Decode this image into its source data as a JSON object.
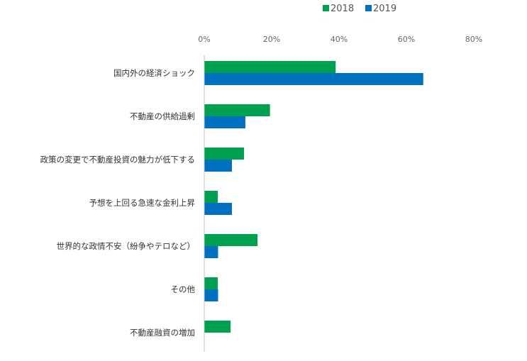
{
  "chart_data": {
    "type": "bar",
    "orientation": "horizontal",
    "categories": [
      "国内外の経済ショック",
      "不動産の供給過剰",
      "政策の変更で不動産投資の魅力が低下する",
      "予想を上回る急速な金利上昇",
      "世界的な政情不安（紛争やテロなど）",
      "その他",
      "不動産融資の増加"
    ],
    "series": [
      {
        "name": "2018",
        "color": "#00a051",
        "values": [
          39,
          19.5,
          11.8,
          4,
          15.8,
          4,
          7.8
        ]
      },
      {
        "name": "2019",
        "color": "#0071c0",
        "values": [
          65,
          12.2,
          8.2,
          8.2,
          4.1,
          4.1,
          0
        ]
      }
    ],
    "xlim": [
      0,
      80
    ],
    "x_ticks": [
      "0%",
      "20%",
      "40%",
      "60%",
      "80%"
    ],
    "x_tick_values": [
      0,
      20,
      40,
      60,
      80
    ],
    "axis_position": "top",
    "legend_position": "top-right",
    "grid": false
  }
}
